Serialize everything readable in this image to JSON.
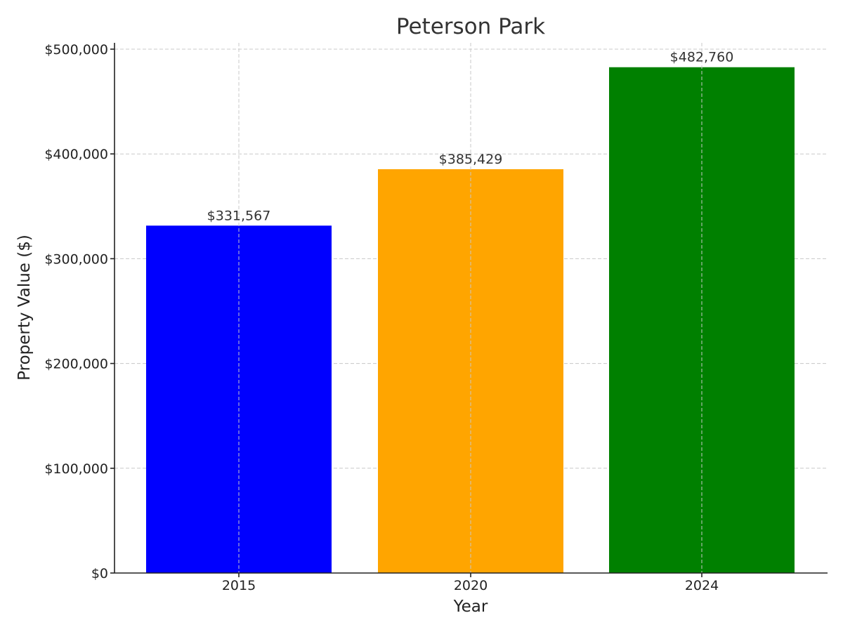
{
  "chart_data": {
    "type": "bar",
    "title": "Peterson Park",
    "xlabel": "Year",
    "ylabel": "Property Value ($)",
    "categories": [
      "2015",
      "2020",
      "2024"
    ],
    "values": [
      331567,
      385429,
      482760
    ],
    "value_labels": [
      "$331,567",
      "$385,429",
      "$482,760"
    ],
    "colors": [
      "#0000ff",
      "#ffa500",
      "#008000"
    ],
    "ylim": [
      0,
      500000
    ],
    "yticks": [
      0,
      100000,
      200000,
      300000,
      400000,
      500000
    ],
    "ytick_labels": [
      "$0",
      "$100,000",
      "$200,000",
      "$300,000",
      "$400,000",
      "$500,000"
    ],
    "grid": true
  }
}
